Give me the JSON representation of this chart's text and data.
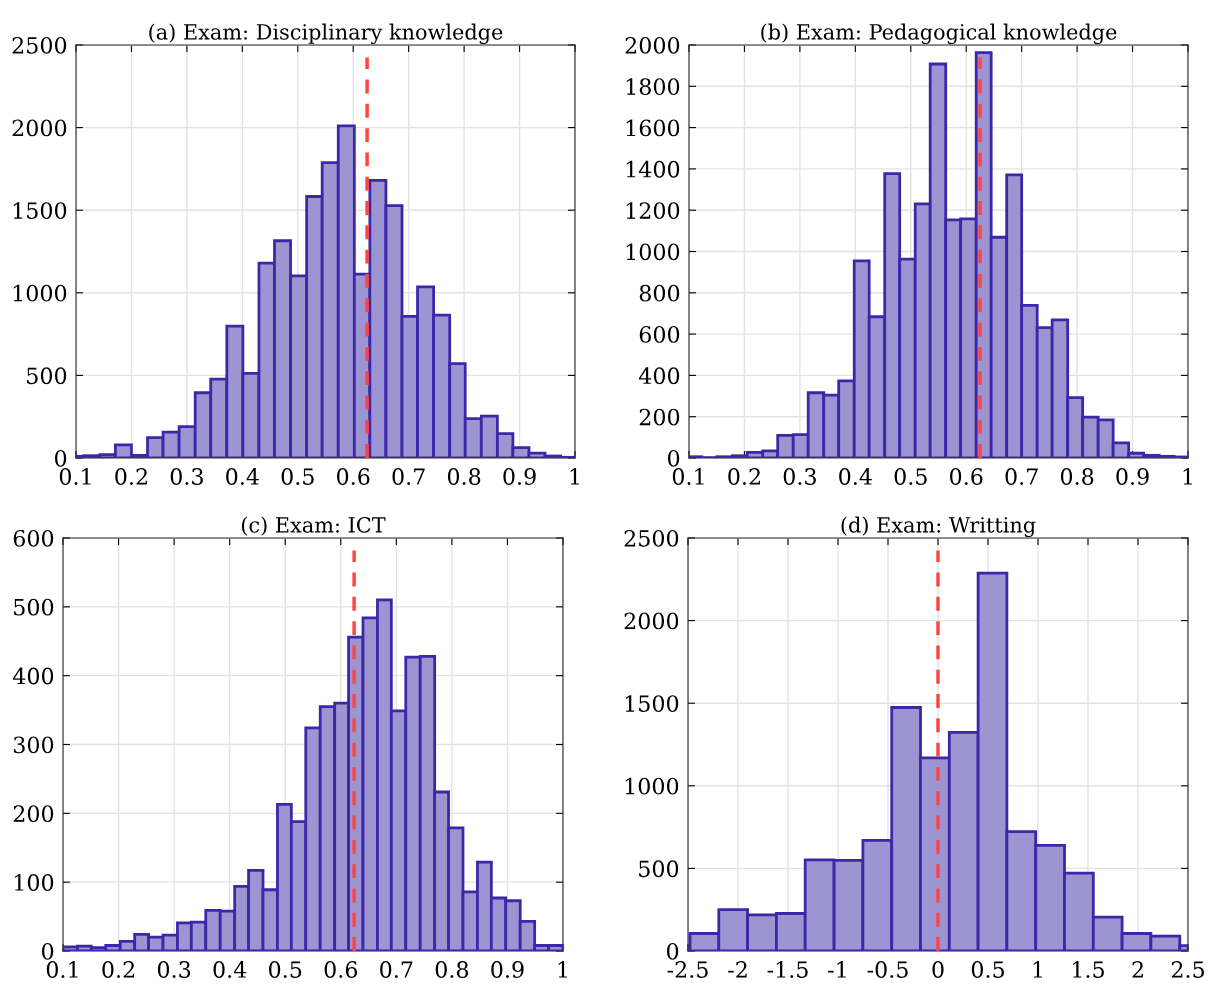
{
  "chart_data": [
    {
      "type": "histogram",
      "title": "(a) Exam: Disciplinary knowledge",
      "color": "#9d94d2",
      "bins": [
        0.1,
        0.114,
        0.143,
        0.171,
        0.2,
        0.229,
        0.257,
        0.286,
        0.315,
        0.343,
        0.372,
        0.401,
        0.43,
        0.458,
        0.487,
        0.516,
        0.544,
        0.573,
        0.602,
        0.63,
        0.659,
        0.688,
        0.716,
        0.745,
        0.774,
        0.802,
        0.831,
        0.86,
        0.888,
        0.917,
        0.946,
        0.974,
        1.0
      ],
      "values": [
        10,
        14,
        20,
        80,
        16,
        123,
        157,
        190,
        395,
        478,
        798,
        512,
        1179,
        1315,
        1103,
        1583,
        1788,
        2010,
        1113,
        1681,
        1528,
        857,
        1036,
        865,
        571,
        238,
        254,
        147,
        63,
        30,
        12,
        4
      ],
      "xlim": [
        0.1,
        1
      ],
      "xticks": [
        0.1,
        0.2,
        0.3,
        0.4,
        0.5,
        0.6,
        0.7,
        0.8,
        0.9,
        1
      ],
      "ylim": [
        0,
        2500
      ],
      "yticks": [
        0,
        500,
        1000,
        1500,
        2000,
        2500
      ],
      "grid": true,
      "ref_lines": [
        {
          "axis": "x",
          "value": 0.625,
          "color": "#ff4444",
          "line_style": "dashed"
        }
      ]
    },
    {
      "type": "histogram",
      "title": "(b) Exam: Pedagogical knowledge",
      "color": "#9d94d2",
      "bins": [
        0.1,
        0.123,
        0.15,
        0.178,
        0.205,
        0.233,
        0.26,
        0.288,
        0.315,
        0.343,
        0.37,
        0.398,
        0.425,
        0.453,
        0.48,
        0.508,
        0.535,
        0.563,
        0.59,
        0.618,
        0.645,
        0.673,
        0.7,
        0.728,
        0.755,
        0.783,
        0.81,
        0.838,
        0.865,
        0.893,
        0.92,
        0.948,
        0.975,
        1.0
      ],
      "values": [
        6,
        2,
        6,
        11,
        27,
        35,
        110,
        113,
        316,
        305,
        374,
        955,
        684,
        1377,
        963,
        1231,
        1908,
        1153,
        1158,
        1963,
        1069,
        1371,
        739,
        631,
        669,
        292,
        198,
        185,
        73,
        23,
        13,
        8,
        5
      ],
      "xlim": [
        0.1,
        1
      ],
      "xticks": [
        0.1,
        0.2,
        0.3,
        0.4,
        0.5,
        0.6,
        0.7,
        0.8,
        0.9,
        1
      ],
      "ylim": [
        0,
        2000
      ],
      "yticks": [
        0,
        200,
        400,
        600,
        800,
        1000,
        1200,
        1400,
        1600,
        1800,
        2000
      ],
      "grid": true,
      "ref_lines": [
        {
          "axis": "x",
          "value": 0.625,
          "color": "#ff4444",
          "line_style": "dashed"
        }
      ]
    },
    {
      "type": "histogram",
      "title": "(c) Exam: ICT",
      "color": "#9d94d2",
      "bins": [
        0.1,
        0.126,
        0.151,
        0.177,
        0.203,
        0.229,
        0.254,
        0.28,
        0.306,
        0.331,
        0.357,
        0.383,
        0.409,
        0.434,
        0.46,
        0.486,
        0.511,
        0.537,
        0.563,
        0.589,
        0.614,
        0.64,
        0.666,
        0.691,
        0.717,
        0.743,
        0.769,
        0.794,
        0.82,
        0.846,
        0.871,
        0.897,
        0.923,
        0.949,
        0.974,
        1.0
      ],
      "values": [
        6,
        7,
        5,
        8,
        14,
        24,
        20,
        23,
        41,
        42,
        59,
        58,
        94,
        117,
        89,
        213,
        188,
        324,
        355,
        360,
        456,
        484,
        510,
        349,
        427,
        428,
        231,
        179,
        86,
        129,
        77,
        73,
        43,
        8,
        8
      ],
      "xlim": [
        0.1,
        1
      ],
      "xticks": [
        0.1,
        0.2,
        0.3,
        0.4,
        0.5,
        0.6,
        0.7,
        0.8,
        0.9,
        1
      ],
      "ylim": [
        0,
        600
      ],
      "yticks": [
        0,
        100,
        200,
        300,
        400,
        500,
        600
      ],
      "grid": true,
      "ref_lines": [
        {
          "axis": "x",
          "value": 0.624,
          "color": "#ff4444",
          "line_style": "dashed"
        }
      ]
    },
    {
      "type": "histogram",
      "title": "(d) Exam: Writting",
      "color": "#9d94d2",
      "bins": [
        -2.48,
        -2.192,
        -1.904,
        -1.616,
        -1.328,
        -1.039,
        -0.751,
        -0.463,
        -0.175,
        0.113,
        0.401,
        0.689,
        0.977,
        1.265,
        1.553,
        1.841,
        2.129,
        2.418,
        2.5
      ],
      "values": [
        106,
        251,
        219,
        227,
        552,
        548,
        669,
        1474,
        1169,
        1323,
        2287,
        723,
        639,
        472,
        205,
        106,
        90,
        32
      ],
      "xlim": [
        -2.5,
        2.5
      ],
      "xticks": [
        -2.5,
        -2,
        -1.5,
        -1,
        -0.5,
        0,
        0.5,
        1,
        1.5,
        2,
        2.5
      ],
      "ylim": [
        0,
        2500
      ],
      "yticks": [
        0,
        500,
        1000,
        1500,
        2000,
        2500
      ],
      "grid": true,
      "ref_lines": [
        {
          "axis": "x",
          "value": 0,
          "color": "#ff4444",
          "line_style": "dashed"
        }
      ]
    }
  ]
}
